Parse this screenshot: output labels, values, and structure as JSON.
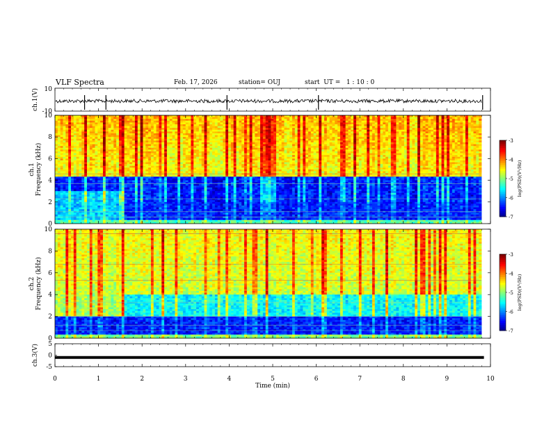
{
  "header": {
    "title": "VLF Spectra",
    "date": "Feb. 17, 2026",
    "station": "station= OUJ",
    "start_ut": "start  UT =   1 : 10 : 0"
  },
  "chart_data": [
    {
      "type": "line",
      "panel": "ch1-waveform",
      "ylabel": "ch.1(V)",
      "ylim": [
        -10,
        10
      ],
      "yticks": [
        "10",
        "-10"
      ],
      "xlim": [
        0,
        10
      ],
      "description_values": {
        "baseline": 0,
        "spikes_at_min": [
          0.68,
          1.17,
          3.95,
          6.05,
          9.82
        ]
      }
    },
    {
      "type": "heatmap",
      "panel": "ch1-spectrogram",
      "ylabel": "ch.1\nFrequency (kHz)",
      "ylim": [
        0,
        10
      ],
      "yticks": [
        "0",
        "2",
        "4",
        "6",
        "8",
        "10"
      ],
      "xlim": [
        0,
        9.85
      ],
      "colorbar": {
        "label": "log(PSD)(V²/Hz)",
        "range": [
          -7,
          -3
        ],
        "ticks": [
          "-3",
          "-4",
          "-5",
          "-6",
          "-7"
        ]
      }
    },
    {
      "type": "heatmap",
      "panel": "ch2-spectrogram",
      "ylabel": "ch.2\nFrequency (kHz)",
      "ylim": [
        0,
        10
      ],
      "yticks": [
        "0",
        "2",
        "4",
        "6",
        "8",
        "10"
      ],
      "xlim": [
        0,
        9.85
      ],
      "colorbar": {
        "label": "log(PSD)(V²/Hz)",
        "range": [
          -7,
          -3
        ],
        "ticks": [
          "-3",
          "-4",
          "-5",
          "-6",
          "-7"
        ]
      }
    },
    {
      "type": "line",
      "panel": "ch3-waveform",
      "ylabel": "ch.3(V)",
      "ylim": [
        -5,
        5
      ],
      "yticks": [
        "5",
        "0",
        "-5"
      ],
      "xlim": [
        0,
        10
      ],
      "series": [
        {
          "x": [
            0,
            9.85
          ],
          "y": [
            -1.0,
            -1.0
          ]
        }
      ]
    }
  ],
  "x_axis": {
    "label": "Time (min)",
    "ticks": [
      "0",
      "1",
      "2",
      "3",
      "4",
      "5",
      "6",
      "7",
      "8",
      "9",
      "10"
    ]
  },
  "colors": {
    "low": "#00007f",
    "mid": "#00ff80",
    "high": "#ff0000"
  }
}
